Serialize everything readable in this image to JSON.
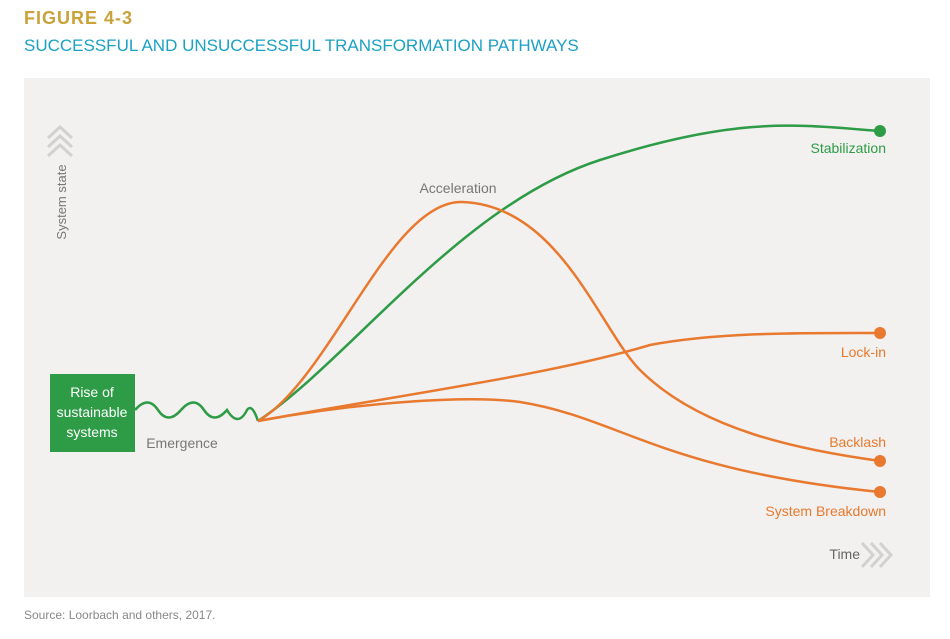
{
  "header": {
    "figure": "FIGURE 4-3",
    "title": "SUCCESSFUL AND UNSUCCESSFUL TRANSFORMATION PATHWAYS"
  },
  "diagram": {
    "start_box": [
      "Rise of",
      "sustainable",
      "systems"
    ],
    "y_axis": "System state",
    "x_axis": "Time",
    "phases": {
      "emergence": "Emergence",
      "acceleration": "Acceleration"
    },
    "outcomes": {
      "stabilization": "Stabilization",
      "lock_in": "Lock-in",
      "backlash": "Backlash",
      "breakdown": "System Breakdown"
    }
  },
  "source": "Source: Loorbach and others, 2017."
}
